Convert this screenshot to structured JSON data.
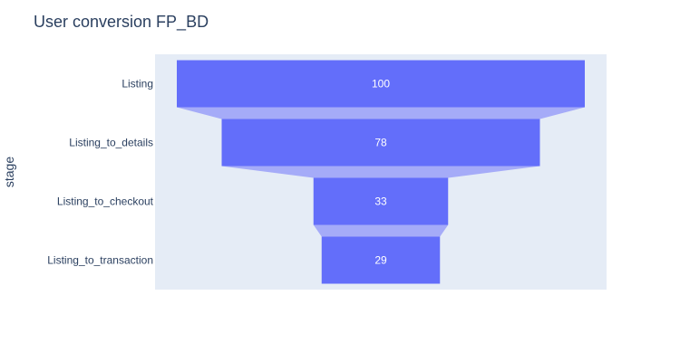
{
  "chart_data": {
    "type": "funnel",
    "title": "User conversion FP_BD",
    "ylabel": "stage",
    "xlabel": "",
    "categories": [
      "Listing",
      "Listing_to_details",
      "Listing_to_checkout",
      "Listing_to_transaction"
    ],
    "values": [
      100,
      78,
      33,
      29
    ],
    "text_labels": [
      "100",
      "78",
      "33",
      "29"
    ],
    "grid": false,
    "legend": "none"
  },
  "colors": {
    "bar": "#636efa",
    "connector": "#a5abf8",
    "plot_background": "#e5ecf6",
    "text": "#2a3f5f",
    "label_text": "#ffffff"
  }
}
